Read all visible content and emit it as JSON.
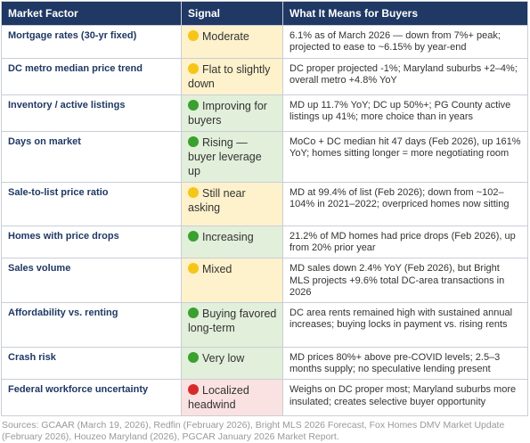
{
  "headers": [
    "Market Factor",
    "Signal",
    "What It Means for Buyers"
  ],
  "rows": [
    {
      "factor": "Mortgage rates (30-yr fixed)",
      "color": "#f5c518",
      "tone": "yellow",
      "signal": "Moderate",
      "means": "6.1% as of March 2026 — down from 7%+ peak; projected to ease to ~6.15% by year-end"
    },
    {
      "factor": "DC metro median price trend",
      "color": "#f5c518",
      "tone": "yellow",
      "signal": "Flat to slightly down",
      "means": "DC proper projected -1%; Maryland suburbs +2–4%; overall metro +4.8% YoY"
    },
    {
      "factor": "Inventory / active listings",
      "color": "#3aa02f",
      "tone": "green",
      "signal": "Improving for buyers",
      "means": "MD up 11.7% YoY; DC up 50%+; PG County active listings up 41%; more choice than in years"
    },
    {
      "factor": "Days on market",
      "color": "#3aa02f",
      "tone": "green",
      "signal": "Rising — buyer leverage up",
      "means": "MoCo + DC median hit 47 days (Feb 2026), up 161% YoY; homes sitting longer = more negotiating room"
    },
    {
      "factor": "Sale-to-list price ratio",
      "color": "#f5c518",
      "tone": "yellow",
      "signal": "Still near asking",
      "means": "MD at 99.4% of list (Feb 2026); down from ~102–104% in 2021–2022; overpriced homes now sitting"
    },
    {
      "factor": "Homes with price drops",
      "color": "#3aa02f",
      "tone": "green",
      "signal": "Increasing",
      "means": "21.2% of MD homes had price drops (Feb 2026), up from 20% prior year"
    },
    {
      "factor": "Sales volume",
      "color": "#f5c518",
      "tone": "yellow",
      "signal": "Mixed",
      "means": "MD sales down 2.4% YoY (Feb 2026), but Bright MLS projects +9.6% total DC-area transactions in 2026"
    },
    {
      "factor": "Affordability vs. renting",
      "color": "#3aa02f",
      "tone": "green",
      "signal": "Buying favored long-term",
      "means": "DC area rents remained high with sustained annual increases; buying locks in payment vs. rising rents"
    },
    {
      "factor": "Crash risk",
      "color": "#3aa02f",
      "tone": "green",
      "signal": "Very low",
      "means": "MD prices 80%+ above pre-COVID levels; 2.5–3 months supply; no speculative lending present"
    },
    {
      "factor": "Federal workforce uncertainty",
      "color": "#d62b2b",
      "tone": "red",
      "signal": "Localized headwind",
      "means": "Weighs on DC proper most; Maryland suburbs more insulated; creates selective buyer opportunity"
    }
  ],
  "sources": "Sources: GCAAR (March 19, 2026), Redfin (February 2026), Bright MLS 2026 Forecast, Fox Homes DMV Market Update (February 2026), Houzeo Maryland (2026), PGCAR January 2026 Market Report."
}
